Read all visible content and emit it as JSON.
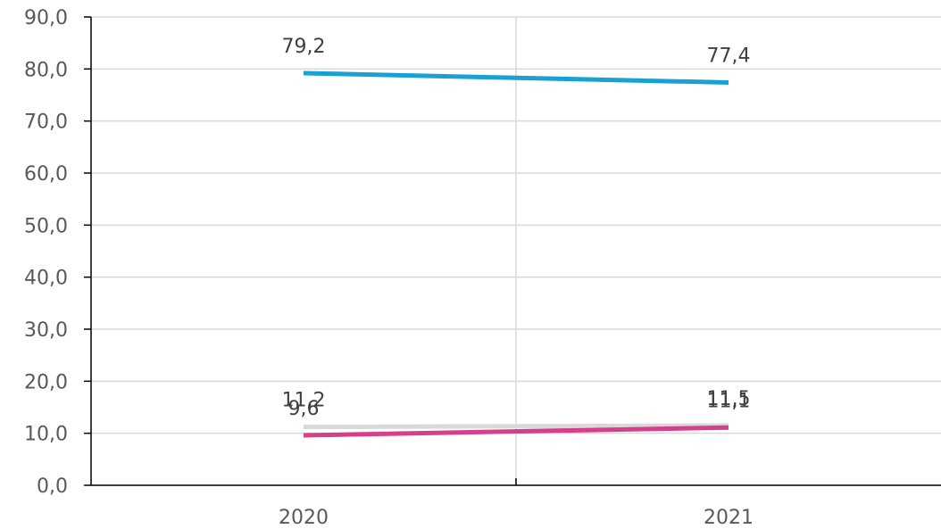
{
  "chart_data": {
    "type": "line",
    "categories": [
      "2020",
      "2021"
    ],
    "ylim": [
      0,
      90
    ],
    "y_ticks": [
      "0,0",
      "10,0",
      "20,0",
      "30,0",
      "40,0",
      "50,0",
      "60,0",
      "70,0",
      "80,0",
      "90,0"
    ],
    "grid": true,
    "title": "",
    "xlabel": "",
    "ylabel": "",
    "series": [
      {
        "color": "#1aa0d2",
        "values": [
          79.2,
          77.4
        ],
        "labels": [
          "79,2",
          "77,4"
        ]
      },
      {
        "color": "#d9d9d9",
        "values": [
          11.2,
          11.5
        ],
        "labels": [
          "11,2",
          "11,5"
        ]
      },
      {
        "color": "#d6408a",
        "values": [
          9.6,
          11.1
        ],
        "labels": [
          "9,6",
          "11,1"
        ]
      }
    ]
  }
}
